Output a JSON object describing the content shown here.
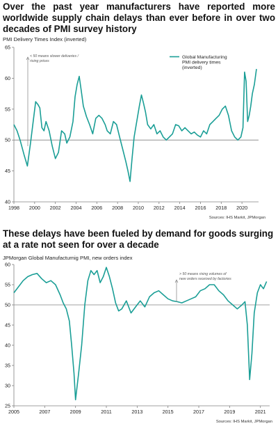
{
  "headings": {
    "top": "Over the past year manufacturers have reported more worldwide supply chain delays than ever before in over two decades of PMI survey history",
    "bottom": "These delays have been fueled by demand for goods surging at a rate not seen for over a decade"
  },
  "colors": {
    "line": "#1a9e96",
    "axis": "#808080",
    "reference": "#808080",
    "text": "#222222"
  },
  "chart_data": [
    {
      "type": "line",
      "title": "PMI Delivery Times Index (inverted)",
      "source": "Sources: IHS Markit, JPMorgan",
      "annotation": [
        "< 50 means slower deliveries /",
        "rising prices"
      ],
      "legend_label": [
        "Global Manufacturing",
        "PMI delivery times",
        "(inverted)"
      ],
      "legend_position": "top-right",
      "xlim": [
        1998,
        2021.6
      ],
      "ylim": [
        40,
        65
      ],
      "reference_line": 50,
      "xticks": [
        "1998",
        "2000",
        "2002",
        "2004",
        "2006",
        "2008",
        "2010",
        "2012",
        "2014",
        "2016",
        "2018",
        "2020"
      ],
      "xtick_values": [
        1998,
        2000,
        2002,
        2004,
        2006,
        2008,
        2010,
        2012,
        2014,
        2016,
        2018,
        2020
      ],
      "yticks": [
        "40",
        "45",
        "50",
        "55",
        "60",
        "65"
      ],
      "ytick_values": [
        40,
        45,
        50,
        55,
        60,
        65
      ],
      "series": [
        {
          "x": [
            1998.0,
            1998.3,
            1998.6,
            1999.0,
            1999.3,
            1999.6,
            1999.9,
            2000.1,
            2000.3,
            2000.5,
            2000.7,
            2000.9,
            2001.1,
            2001.4,
            2001.7,
            2002.0,
            2002.3,
            2002.6,
            2002.9,
            2003.1,
            2003.4,
            2003.7,
            2003.9,
            2004.1,
            2004.3,
            2004.5,
            2004.7,
            2005.0,
            2005.3,
            2005.6,
            2005.9,
            2006.2,
            2006.5,
            2006.8,
            2007.0,
            2007.3,
            2007.6,
            2007.9,
            2008.2,
            2008.5,
            2008.8,
            2009.0,
            2009.2,
            2009.4,
            2009.6,
            2009.9,
            2010.1,
            2010.3,
            2010.5,
            2010.7,
            2010.9,
            2011.2,
            2011.5,
            2011.8,
            2012.1,
            2012.4,
            2012.7,
            2013.0,
            2013.3,
            2013.6,
            2013.9,
            2014.2,
            2014.5,
            2014.8,
            2015.1,
            2015.4,
            2015.7,
            2016.0,
            2016.3,
            2016.6,
            2016.9,
            2017.2,
            2017.5,
            2017.8,
            2018.1,
            2018.4,
            2018.7,
            2019.0,
            2019.3,
            2019.6,
            2019.9,
            2020.1,
            2020.25,
            2020.4,
            2020.55,
            2020.7,
            2020.85,
            2021.0,
            2021.2,
            2021.4
          ],
          "y": [
            52.5,
            51.5,
            50.0,
            47.5,
            45.8,
            49.5,
            53.5,
            56.2,
            55.8,
            55.2,
            52.0,
            51.5,
            53.0,
            51.5,
            49.0,
            47.0,
            48.0,
            51.5,
            51.0,
            49.5,
            50.5,
            53.0,
            57.0,
            59.0,
            60.3,
            58.0,
            55.5,
            53.8,
            52.5,
            51.0,
            53.5,
            54.0,
            53.5,
            52.5,
            51.5,
            51.0,
            53.0,
            52.5,
            50.5,
            48.5,
            46.5,
            45.0,
            43.3,
            47.0,
            50.5,
            53.5,
            55.5,
            57.3,
            56.0,
            54.5,
            52.5,
            51.8,
            52.5,
            51.0,
            51.5,
            50.5,
            50.0,
            50.5,
            51.0,
            52.5,
            52.3,
            51.5,
            52.0,
            51.5,
            51.0,
            51.3,
            50.8,
            50.5,
            51.5,
            51.0,
            52.5,
            53.0,
            53.5,
            54.0,
            55.0,
            55.5,
            54.0,
            51.5,
            50.5,
            50.0,
            50.5,
            52.0,
            61.0,
            59.5,
            53.0,
            54.0,
            55.5,
            57.5,
            59.0,
            61.5
          ]
        }
      ]
    },
    {
      "type": "line",
      "title": "JPMorgan Global Manufacturnig PMI, new orders index",
      "source": "Sources: IHS Markit, JPMorgan",
      "annotation": [
        "> 50 means rising volumes of",
        "new orders received by factories"
      ],
      "xlim": [
        2005,
        2021.6
      ],
      "ylim": [
        25,
        60
      ],
      "reference_line": 50,
      "xticks": [
        "2005",
        "2007",
        "2009",
        "2011",
        "2013",
        "2015",
        "2017",
        "2019",
        "2021"
      ],
      "xtick_values": [
        2005,
        2007,
        2009,
        2011,
        2013,
        2015,
        2017,
        2019,
        2021
      ],
      "yticks": [
        "25",
        "30",
        "35",
        "40",
        "45",
        "50",
        "55",
        "60"
      ],
      "ytick_values": [
        25,
        30,
        35,
        40,
        45,
        50,
        55,
        60
      ],
      "series": [
        {
          "x": [
            2005.0,
            2005.3,
            2005.6,
            2005.9,
            2006.2,
            2006.5,
            2006.8,
            2007.1,
            2007.4,
            2007.7,
            2008.0,
            2008.2,
            2008.4,
            2008.6,
            2008.75,
            2008.9,
            2009.0,
            2009.2,
            2009.4,
            2009.6,
            2009.8,
            2010.0,
            2010.2,
            2010.4,
            2010.6,
            2010.8,
            2011.0,
            2011.2,
            2011.4,
            2011.6,
            2011.8,
            2012.0,
            2012.3,
            2012.6,
            2012.9,
            2013.2,
            2013.5,
            2013.8,
            2014.1,
            2014.4,
            2014.7,
            2015.0,
            2015.3,
            2015.6,
            2015.9,
            2016.2,
            2016.5,
            2016.8,
            2017.1,
            2017.4,
            2017.7,
            2018.0,
            2018.3,
            2018.6,
            2018.9,
            2019.2,
            2019.5,
            2019.8,
            2020.0,
            2020.15,
            2020.3,
            2020.45,
            2020.6,
            2020.8,
            2021.0,
            2021.2,
            2021.4
          ],
          "y": [
            53.0,
            54.5,
            56.0,
            57.0,
            57.5,
            57.8,
            56.5,
            55.5,
            56.0,
            55.0,
            52.5,
            50.5,
            49.0,
            46.0,
            40.0,
            33.0,
            26.5,
            33.0,
            40.0,
            50.0,
            56.0,
            58.5,
            57.5,
            58.5,
            55.5,
            57.0,
            59.3,
            57.0,
            54.0,
            50.5,
            48.5,
            49.0,
            51.0,
            48.0,
            49.5,
            51.0,
            49.5,
            52.0,
            53.0,
            53.5,
            52.5,
            51.5,
            51.0,
            50.8,
            50.5,
            51.0,
            51.5,
            52.0,
            53.5,
            54.0,
            55.0,
            55.0,
            53.5,
            52.5,
            51.0,
            50.0,
            49.0,
            50.0,
            50.8,
            45.0,
            31.5,
            38.0,
            48.0,
            53.0,
            55.0,
            54.0,
            55.8
          ]
        }
      ]
    }
  ]
}
